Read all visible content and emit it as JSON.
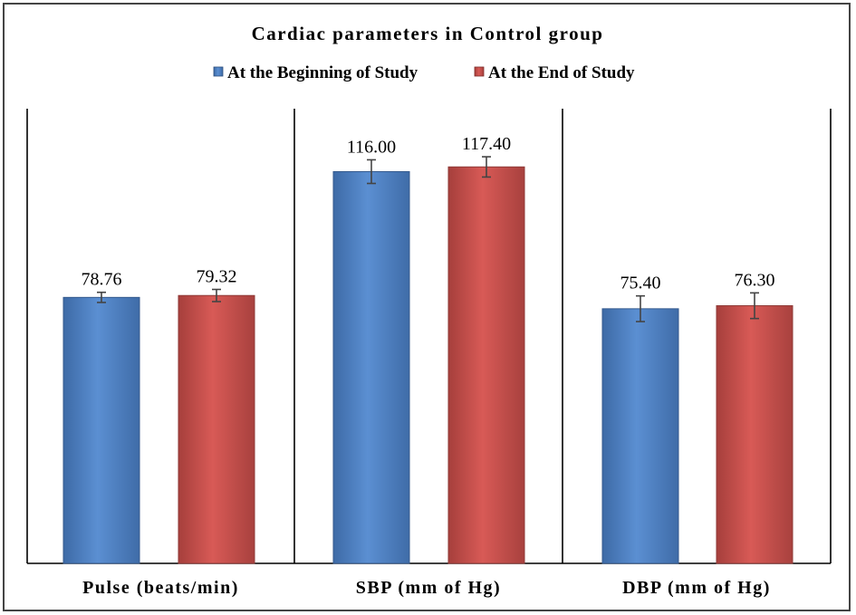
{
  "chart_data": {
    "type": "bar",
    "title": "Cardiac parameters in Control group",
    "categories": [
      "Pulse (beats/min)",
      "SBP (mm of Hg)",
      "DBP (mm of Hg)"
    ],
    "series": [
      {
        "name": "At the Beginning of Study",
        "values": [
          78.76,
          116.0,
          75.4
        ],
        "labels": [
          "78.76",
          "116.00",
          "75.40"
        ],
        "error": [
          1.5,
          3.5,
          3.8
        ],
        "color": "#4f81bd"
      },
      {
        "name": "At the End of Study",
        "values": [
          79.32,
          117.4,
          76.3
        ],
        "labels": [
          "79.32",
          "117.40",
          "76.30"
        ],
        "error": [
          1.8,
          3.0,
          3.8
        ],
        "color": "#c0504d"
      }
    ],
    "ylim": [
      0,
      140
    ],
    "grid": false,
    "legend_position": "top"
  }
}
